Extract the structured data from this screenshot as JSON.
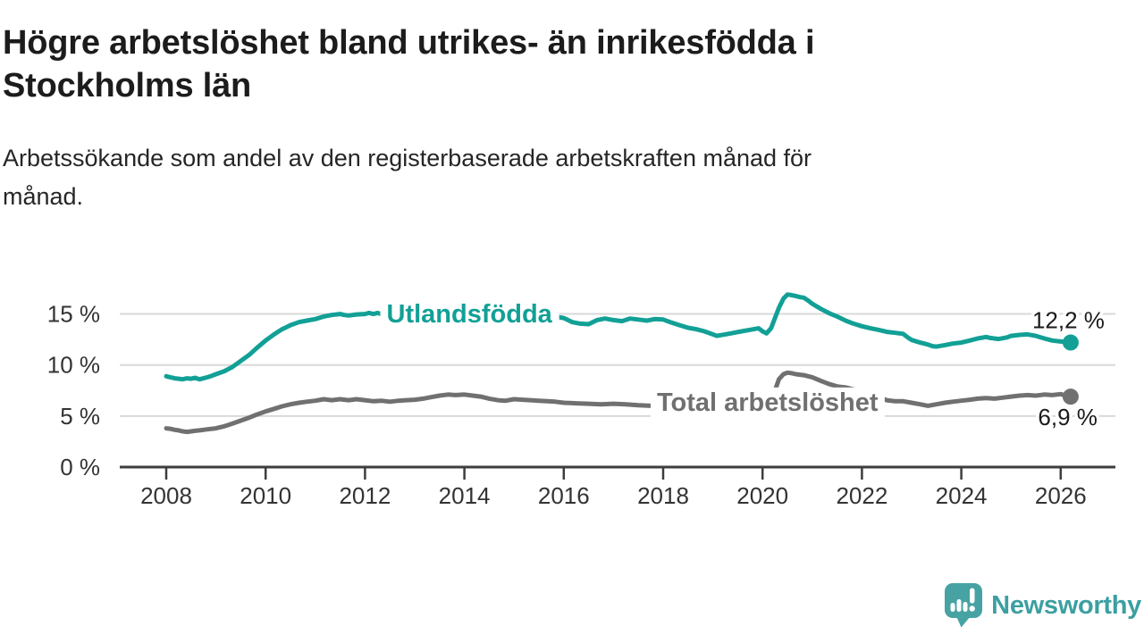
{
  "header": {
    "title_lines": [
      "Högre arbetslöshet bland utrikes- än inrikesfödda i",
      "Stockholms län"
    ],
    "subtitle_lines": [
      "Arbetssökande som andel av den registerbaserade arbetskraften månad för",
      "månad."
    ]
  },
  "branding": {
    "name": "Newsworthy",
    "text_color": "#3c9fa1",
    "mark_color": "#47a2a3"
  },
  "chart_data": {
    "type": "line",
    "title": "",
    "xlabel": "",
    "ylabel": "",
    "x_unit": "year (monthly series)",
    "xlim": [
      2007.6,
      2027.1
    ],
    "ylim": [
      0,
      17.5
    ],
    "grid": "horizontal",
    "legend_position": "inline-labels",
    "y_axis": {
      "ticks": [
        {
          "v": 0,
          "label": "0 %"
        },
        {
          "v": 5,
          "label": "5 %"
        },
        {
          "v": 10,
          "label": "10 %"
        },
        {
          "v": 15,
          "label": "15 %"
        }
      ]
    },
    "x_axis": {
      "ticks": [
        {
          "v": 2008,
          "label": "2008"
        },
        {
          "v": 2010,
          "label": "2010"
        },
        {
          "v": 2012,
          "label": "2012"
        },
        {
          "v": 2014,
          "label": "2014"
        },
        {
          "v": 2016,
          "label": "2016"
        },
        {
          "v": 2018,
          "label": "2018"
        },
        {
          "v": 2020,
          "label": "2020"
        },
        {
          "v": 2022,
          "label": "2022"
        },
        {
          "v": 2024,
          "label": "2024"
        },
        {
          "v": 2026,
          "label": "2026"
        }
      ]
    },
    "series": [
      {
        "name": "Utlandsfödda",
        "color": "#12a096",
        "end_label": "12,2 %",
        "end_label_placement": "above",
        "inline_label": {
          "year": 2014.1,
          "value": 15.05
        },
        "points": [
          [
            2008.0,
            8.9
          ],
          [
            2008.08,
            8.8
          ],
          [
            2008.17,
            8.7
          ],
          [
            2008.25,
            8.65
          ],
          [
            2008.33,
            8.6
          ],
          [
            2008.42,
            8.7
          ],
          [
            2008.5,
            8.65
          ],
          [
            2008.58,
            8.75
          ],
          [
            2008.67,
            8.6
          ],
          [
            2008.75,
            8.7
          ],
          [
            2008.83,
            8.8
          ],
          [
            2008.92,
            8.95
          ],
          [
            2009.0,
            9.1
          ],
          [
            2009.17,
            9.4
          ],
          [
            2009.33,
            9.8
          ],
          [
            2009.5,
            10.4
          ],
          [
            2009.67,
            11.0
          ],
          [
            2009.83,
            11.7
          ],
          [
            2010.0,
            12.4
          ],
          [
            2010.17,
            13.0
          ],
          [
            2010.33,
            13.5
          ],
          [
            2010.5,
            13.9
          ],
          [
            2010.67,
            14.2
          ],
          [
            2010.83,
            14.35
          ],
          [
            2011.0,
            14.5
          ],
          [
            2011.17,
            14.75
          ],
          [
            2011.33,
            14.9
          ],
          [
            2011.5,
            15.0
          ],
          [
            2011.58,
            14.9
          ],
          [
            2011.67,
            14.85
          ],
          [
            2011.83,
            14.95
          ],
          [
            2012.0,
            15.0
          ],
          [
            2012.08,
            15.1
          ],
          [
            2012.17,
            15.0
          ],
          [
            2012.25,
            15.1
          ],
          [
            2012.33,
            15.0
          ],
          [
            2012.5,
            14.95
          ],
          [
            2012.75,
            15.0
          ],
          [
            2013.0,
            15.0
          ],
          [
            2013.25,
            14.9
          ],
          [
            2013.5,
            14.95
          ],
          [
            2013.75,
            14.85
          ],
          [
            2014.0,
            14.9
          ],
          [
            2014.25,
            14.85
          ],
          [
            2014.5,
            14.9
          ],
          [
            2014.75,
            14.8
          ],
          [
            2015.0,
            14.85
          ],
          [
            2015.25,
            14.8
          ],
          [
            2015.5,
            14.85
          ],
          [
            2015.75,
            14.8
          ],
          [
            2016.0,
            14.6
          ],
          [
            2016.17,
            14.2
          ],
          [
            2016.33,
            14.05
          ],
          [
            2016.5,
            14.0
          ],
          [
            2016.67,
            14.4
          ],
          [
            2016.83,
            14.55
          ],
          [
            2017.0,
            14.4
          ],
          [
            2017.17,
            14.3
          ],
          [
            2017.33,
            14.55
          ],
          [
            2017.5,
            14.45
          ],
          [
            2017.67,
            14.35
          ],
          [
            2017.83,
            14.5
          ],
          [
            2018.0,
            14.45
          ],
          [
            2018.17,
            14.15
          ],
          [
            2018.33,
            13.9
          ],
          [
            2018.5,
            13.65
          ],
          [
            2018.67,
            13.5
          ],
          [
            2018.83,
            13.3
          ],
          [
            2019.0,
            13.0
          ],
          [
            2019.08,
            12.85
          ],
          [
            2019.25,
            13.0
          ],
          [
            2019.42,
            13.15
          ],
          [
            2019.58,
            13.3
          ],
          [
            2019.75,
            13.45
          ],
          [
            2019.92,
            13.6
          ],
          [
            2020.0,
            13.3
          ],
          [
            2020.08,
            13.1
          ],
          [
            2020.17,
            13.6
          ],
          [
            2020.25,
            14.6
          ],
          [
            2020.33,
            15.6
          ],
          [
            2020.42,
            16.5
          ],
          [
            2020.5,
            16.9
          ],
          [
            2020.58,
            16.85
          ],
          [
            2020.67,
            16.75
          ],
          [
            2020.75,
            16.65
          ],
          [
            2020.83,
            16.6
          ],
          [
            2020.92,
            16.3
          ],
          [
            2021.0,
            16.0
          ],
          [
            2021.17,
            15.5
          ],
          [
            2021.33,
            15.1
          ],
          [
            2021.5,
            14.75
          ],
          [
            2021.67,
            14.35
          ],
          [
            2021.83,
            14.05
          ],
          [
            2022.0,
            13.8
          ],
          [
            2022.17,
            13.6
          ],
          [
            2022.33,
            13.45
          ],
          [
            2022.5,
            13.25
          ],
          [
            2022.67,
            13.15
          ],
          [
            2022.83,
            13.05
          ],
          [
            2022.92,
            12.7
          ],
          [
            2023.0,
            12.45
          ],
          [
            2023.17,
            12.2
          ],
          [
            2023.33,
            12.0
          ],
          [
            2023.42,
            11.85
          ],
          [
            2023.5,
            11.8
          ],
          [
            2023.67,
            11.95
          ],
          [
            2023.83,
            12.1
          ],
          [
            2024.0,
            12.2
          ],
          [
            2024.17,
            12.4
          ],
          [
            2024.33,
            12.6
          ],
          [
            2024.5,
            12.75
          ],
          [
            2024.58,
            12.65
          ],
          [
            2024.75,
            12.55
          ],
          [
            2024.92,
            12.7
          ],
          [
            2025.0,
            12.85
          ],
          [
            2025.17,
            12.95
          ],
          [
            2025.33,
            13.0
          ],
          [
            2025.5,
            12.85
          ],
          [
            2025.67,
            12.6
          ],
          [
            2025.83,
            12.4
          ],
          [
            2026.0,
            12.3
          ],
          [
            2026.2,
            12.2
          ]
        ]
      },
      {
        "name": "Total arbetslöshet",
        "color": "#707070",
        "end_label": "6,9 %",
        "end_label_placement": "below",
        "inline_label": {
          "year": 2020.1,
          "value": 6.4
        },
        "points": [
          [
            2008.0,
            3.8
          ],
          [
            2008.08,
            3.75
          ],
          [
            2008.17,
            3.65
          ],
          [
            2008.25,
            3.6
          ],
          [
            2008.33,
            3.5
          ],
          [
            2008.42,
            3.45
          ],
          [
            2008.5,
            3.5
          ],
          [
            2008.58,
            3.55
          ],
          [
            2008.67,
            3.6
          ],
          [
            2008.75,
            3.65
          ],
          [
            2008.83,
            3.7
          ],
          [
            2008.92,
            3.75
          ],
          [
            2009.0,
            3.8
          ],
          [
            2009.17,
            4.0
          ],
          [
            2009.33,
            4.25
          ],
          [
            2009.5,
            4.55
          ],
          [
            2009.67,
            4.85
          ],
          [
            2009.83,
            5.15
          ],
          [
            2010.0,
            5.45
          ],
          [
            2010.17,
            5.7
          ],
          [
            2010.33,
            5.95
          ],
          [
            2010.5,
            6.15
          ],
          [
            2010.67,
            6.3
          ],
          [
            2010.83,
            6.4
          ],
          [
            2011.0,
            6.5
          ],
          [
            2011.17,
            6.65
          ],
          [
            2011.33,
            6.55
          ],
          [
            2011.5,
            6.65
          ],
          [
            2011.67,
            6.55
          ],
          [
            2011.83,
            6.65
          ],
          [
            2012.0,
            6.55
          ],
          [
            2012.17,
            6.45
          ],
          [
            2012.33,
            6.5
          ],
          [
            2012.5,
            6.4
          ],
          [
            2012.67,
            6.5
          ],
          [
            2012.83,
            6.55
          ],
          [
            2013.0,
            6.6
          ],
          [
            2013.17,
            6.7
          ],
          [
            2013.33,
            6.85
          ],
          [
            2013.5,
            7.0
          ],
          [
            2013.67,
            7.1
          ],
          [
            2013.83,
            7.05
          ],
          [
            2014.0,
            7.1
          ],
          [
            2014.17,
            7.0
          ],
          [
            2014.33,
            6.9
          ],
          [
            2014.5,
            6.7
          ],
          [
            2014.67,
            6.55
          ],
          [
            2014.83,
            6.5
          ],
          [
            2015.0,
            6.65
          ],
          [
            2015.17,
            6.6
          ],
          [
            2015.33,
            6.55
          ],
          [
            2015.5,
            6.5
          ],
          [
            2015.67,
            6.45
          ],
          [
            2015.83,
            6.4
          ],
          [
            2016.0,
            6.3
          ],
          [
            2016.25,
            6.25
          ],
          [
            2016.5,
            6.2
          ],
          [
            2016.75,
            6.15
          ],
          [
            2017.0,
            6.2
          ],
          [
            2017.25,
            6.15
          ],
          [
            2017.5,
            6.05
          ],
          [
            2017.75,
            6.0
          ],
          [
            2018.0,
            6.0
          ],
          [
            2018.25,
            5.95
          ],
          [
            2018.5,
            5.9
          ],
          [
            2018.75,
            5.95
          ],
          [
            2019.0,
            6.0
          ],
          [
            2019.25,
            6.0
          ],
          [
            2019.5,
            6.05
          ],
          [
            2019.75,
            6.15
          ],
          [
            2020.0,
            6.1
          ],
          [
            2020.08,
            6.2
          ],
          [
            2020.17,
            6.6
          ],
          [
            2020.25,
            7.5
          ],
          [
            2020.33,
            8.6
          ],
          [
            2020.42,
            9.1
          ],
          [
            2020.5,
            9.25
          ],
          [
            2020.58,
            9.2
          ],
          [
            2020.67,
            9.1
          ],
          [
            2020.83,
            9.0
          ],
          [
            2021.0,
            8.8
          ],
          [
            2021.17,
            8.45
          ],
          [
            2021.33,
            8.15
          ],
          [
            2021.5,
            7.9
          ],
          [
            2021.67,
            7.8
          ],
          [
            2021.83,
            7.6
          ],
          [
            2022.0,
            7.35
          ],
          [
            2022.17,
            7.1
          ],
          [
            2022.33,
            6.85
          ],
          [
            2022.5,
            6.55
          ],
          [
            2022.67,
            6.45
          ],
          [
            2022.83,
            6.45
          ],
          [
            2023.0,
            6.3
          ],
          [
            2023.17,
            6.15
          ],
          [
            2023.33,
            6.0
          ],
          [
            2023.5,
            6.15
          ],
          [
            2023.67,
            6.3
          ],
          [
            2023.83,
            6.4
          ],
          [
            2024.0,
            6.5
          ],
          [
            2024.17,
            6.6
          ],
          [
            2024.33,
            6.7
          ],
          [
            2024.5,
            6.75
          ],
          [
            2024.67,
            6.7
          ],
          [
            2024.83,
            6.8
          ],
          [
            2025.0,
            6.9
          ],
          [
            2025.17,
            7.0
          ],
          [
            2025.33,
            7.05
          ],
          [
            2025.5,
            7.0
          ],
          [
            2025.67,
            7.1
          ],
          [
            2025.83,
            7.05
          ],
          [
            2026.0,
            7.15
          ],
          [
            2026.1,
            7.0
          ],
          [
            2026.2,
            6.9
          ]
        ]
      }
    ]
  }
}
